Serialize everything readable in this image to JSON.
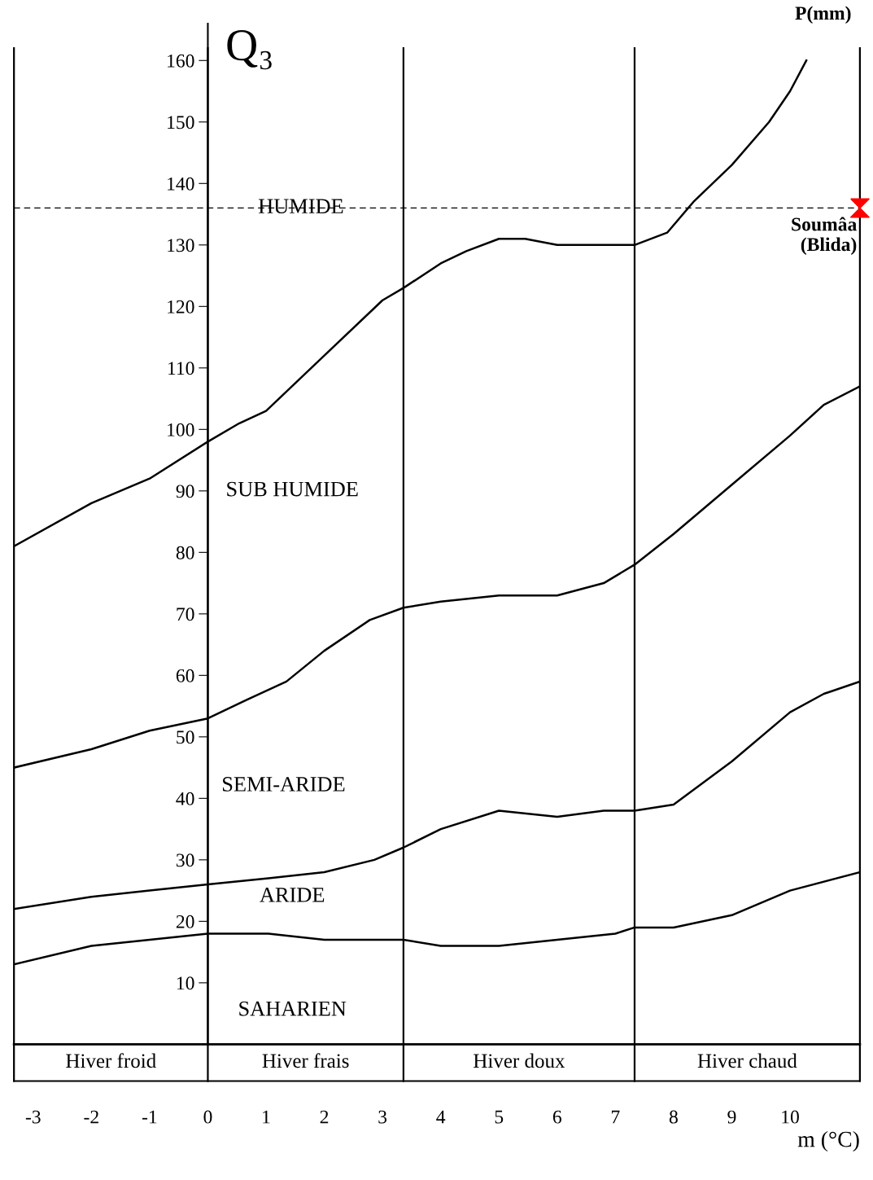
{
  "chart_data": {
    "type": "line",
    "title": "Q₃",
    "xlabel": "m (°C)",
    "ylabel": "P(mm)",
    "xlim": [
      -3.33,
      11.2
    ],
    "ylim": [
      0,
      166
    ],
    "xticks": [
      -3,
      -2,
      -1,
      0,
      1,
      2,
      3,
      4,
      5,
      6,
      7,
      8,
      9,
      10
    ],
    "yticks": [
      10,
      20,
      30,
      40,
      50,
      60,
      70,
      80,
      90,
      100,
      110,
      120,
      130,
      140,
      150,
      160
    ],
    "grid": false,
    "legend": false,
    "marker": "none",
    "line_style": "solid",
    "series": [
      {
        "color": "#000000",
        "x": [
          -3.33,
          -2,
          -1,
          0,
          0.54,
          1,
          2,
          3,
          3.36,
          4,
          4.44,
          5,
          5.45,
          6,
          7,
          7.33,
          7.89,
          8.34,
          9,
          9.64,
          10,
          10.28
        ],
        "values": [
          81,
          88,
          92,
          98,
          101,
          103,
          112,
          121,
          123,
          127,
          129,
          131,
          131,
          130,
          130,
          130,
          132,
          137,
          143,
          150,
          155,
          160
        ]
      },
      {
        "color": "#000000",
        "x": [
          -3.33,
          -2,
          -1,
          0,
          0.66,
          1.35,
          2,
          2.78,
          3.36,
          4,
          5,
          6,
          6.8,
          7.33,
          8,
          9,
          10,
          10.58,
          11.2
        ],
        "values": [
          45,
          48,
          51,
          53,
          56,
          59,
          64,
          69,
          71,
          72,
          73,
          73,
          75,
          78,
          83,
          91,
          99,
          104,
          107
        ]
      },
      {
        "color": "#000000",
        "x": [
          -3.33,
          -2,
          -1,
          0,
          1.04,
          2,
          2.86,
          3.36,
          4,
          5,
          6,
          6.8,
          7.33,
          8,
          9,
          10,
          10.58,
          11.2
        ],
        "values": [
          22,
          24,
          25,
          26,
          27,
          28,
          30,
          32,
          35,
          38,
          37,
          38,
          38,
          39,
          46,
          54,
          57,
          59
        ]
      },
      {
        "color": "#000000",
        "x": [
          -3.33,
          -2,
          -1,
          0,
          0.54,
          1.04,
          2,
          3,
          3.36,
          4,
          4.6,
          5,
          6,
          7,
          7.33,
          8,
          9,
          10,
          11.2
        ],
        "values": [
          13,
          16,
          17,
          18,
          18,
          18,
          17,
          17,
          17,
          16,
          16,
          16,
          17,
          18,
          19,
          19,
          21,
          25,
          28
        ]
      },
      {
        "type": "scatter",
        "name": "Soumâa (Blida)",
        "color": "#ff0000",
        "marker": "triangle",
        "x": [
          11.2
        ],
        "values": [
          136
        ]
      }
    ],
    "ref_lines": [
      {
        "axis": "y",
        "value": 136,
        "line_style": "dashed",
        "color": "#000000"
      },
      {
        "axis": "x",
        "value": 0,
        "color": "#000000"
      },
      {
        "axis": "x",
        "value": 3.36,
        "color": "#000000"
      },
      {
        "axis": "x",
        "value": 7.33,
        "color": "#000000"
      }
    ],
    "annotations": [
      {
        "text": "HUMIDE",
        "x": 1.6,
        "y": 136
      },
      "SUB HUMIDE",
      "SEMI-ARIDE",
      "ARIDE",
      "SAHARIEN",
      "Hiver froid",
      "Hiver frais",
      "Hiver doux",
      "Hiver chaud"
    ]
  }
}
